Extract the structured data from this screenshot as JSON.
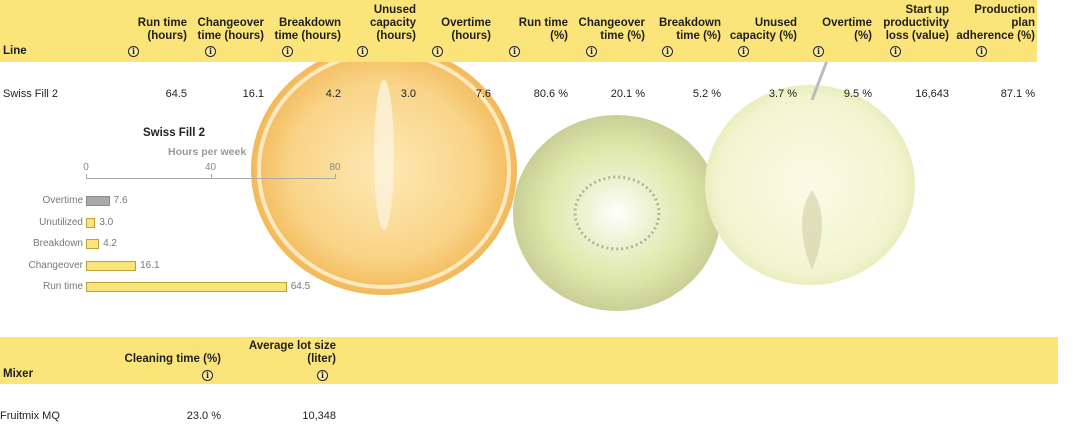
{
  "colors": {
    "header_band": "#fbe57a",
    "bar_fill": "#fbe57a",
    "bar_overtime": "#a9a9a9"
  },
  "line_table": {
    "line_header": "Line",
    "columns": [
      {
        "label": "Run time\n(hours)"
      },
      {
        "label": "Changeover\ntime (hours)"
      },
      {
        "label": "Breakdown\ntime (hours)"
      },
      {
        "label": "Unused\ncapacity\n(hours)"
      },
      {
        "label": "Overtime\n(hours)"
      },
      {
        "label": "Run time\n(%)"
      },
      {
        "label": "Changeover\ntime (%)"
      },
      {
        "label": "Breakdown\ntime (%)"
      },
      {
        "label": "Unused\ncapacity (%)"
      },
      {
        "label": "Overtime\n(%)"
      },
      {
        "label": "Start up\nproductivity\nloss (value)"
      },
      {
        "label": "Production\nplan\nadherence (%)"
      }
    ],
    "rows": [
      {
        "name": "Swiss Fill 2",
        "values": [
          "64.5",
          "16.1",
          "4.2",
          "3.0",
          "7.6",
          "80.6 %",
          "20.1 %",
          "5.2 %",
          "3.7 %",
          "9.5 %",
          "16,643",
          "87.1 %"
        ]
      }
    ],
    "info_glyph": "i"
  },
  "chart_data": {
    "type": "bar",
    "orientation": "horizontal",
    "title": "Swiss Fill 2",
    "xlabel": "Hours per week",
    "ylabel": "",
    "xlim": [
      0,
      80
    ],
    "xticks": [
      "0",
      "40",
      "80"
    ],
    "categories": [
      "Overtime",
      "Unutilized",
      "Breakdown",
      "Changeover",
      "Run time"
    ],
    "values": [
      7.6,
      3.0,
      4.2,
      16.1,
      64.5
    ],
    "value_labels": [
      "7.6",
      "3.0",
      "4.2",
      "16.1",
      "64.5"
    ],
    "grid": false,
    "legend": "none"
  },
  "mixer_table": {
    "mixer_header": "Mixer",
    "columns": [
      {
        "label": "Cleaning time (%)"
      },
      {
        "label": "Average lot size\n(liter)"
      }
    ],
    "rows": [
      {
        "name": "Fruitmix MQ",
        "values": [
          "23.0 %",
          "10,348"
        ]
      }
    ]
  }
}
